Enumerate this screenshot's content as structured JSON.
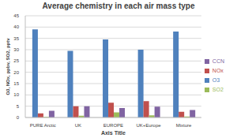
{
  "chart_data": {
    "type": "bar",
    "title": "Average chemistry in each air mass type",
    "x_label": "Axis Title",
    "y_label": "O3, NOx, ppbv, SO2, pptv",
    "categories": [
      "PURE Arctic",
      "UK",
      "EUROPE",
      "UK+Europe",
      "Mixture"
    ],
    "series": [
      {
        "name": "O3",
        "color": "#4f81bd",
        "values": [
          39,
          29.5,
          34.5,
          30,
          38
        ]
      },
      {
        "name": "NOx",
        "color": "#c0504d",
        "values": [
          1.8,
          5,
          6.5,
          7.2,
          2.5
        ]
      },
      {
        "name": "SO2",
        "color": "#9bbb59",
        "values": [
          0.3,
          0.8,
          2.3,
          1,
          0.4
        ]
      },
      {
        "name": "CCN",
        "color": "#8064a2",
        "values": [
          3,
          5,
          4.2,
          4.8,
          3.3
        ]
      }
    ],
    "ylim": [
      0,
      45
    ],
    "yticks": [
      0,
      5,
      10,
      15,
      20,
      25,
      30,
      35,
      40,
      45
    ],
    "grid": true,
    "legend": "right"
  }
}
